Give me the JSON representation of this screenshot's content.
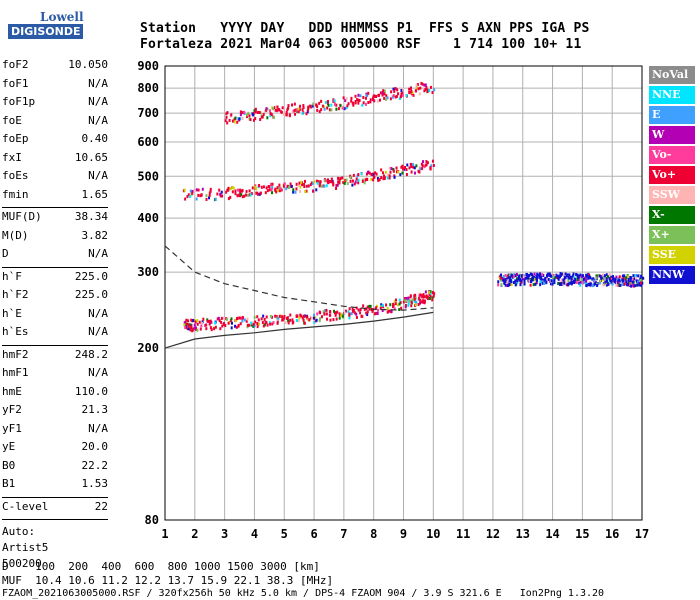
{
  "logo": {
    "line1": "Lowell",
    "line2": "DIGISONDE"
  },
  "header": {
    "row1": "Station   YYYY DAY   DDD HHMMSS P1  FFS S AXN PPS IGA PS",
    "row2": "Fortaleza 2021 Mar04 063 005000 RSF    1 714 100 10+ 11"
  },
  "params_group1": [
    {
      "name": "foF2",
      "value": "10.050"
    },
    {
      "name": "foF1",
      "value": "N/A"
    },
    {
      "name": "foF1p",
      "value": "N/A"
    },
    {
      "name": "foE",
      "value": "N/A"
    },
    {
      "name": "foEp",
      "value": "0.40"
    },
    {
      "name": "fxI",
      "value": "10.65"
    },
    {
      "name": "foEs",
      "value": "N/A"
    },
    {
      "name": "fmin",
      "value": "1.65"
    }
  ],
  "params_group2": [
    {
      "name": "MUF(D)",
      "value": "38.34"
    },
    {
      "name": "M(D)",
      "value": "3.82"
    },
    {
      "name": "D",
      "value": "N/A"
    }
  ],
  "params_group3": [
    {
      "name": "h`F",
      "value": "225.0"
    },
    {
      "name": "h`F2",
      "value": "225.0"
    },
    {
      "name": "h`E",
      "value": "N/A"
    },
    {
      "name": "h`Es",
      "value": "N/A"
    }
  ],
  "params_group4": [
    {
      "name": "hmF2",
      "value": "248.2"
    },
    {
      "name": "hmF1",
      "value": "N/A"
    },
    {
      "name": "hmE",
      "value": "110.0"
    },
    {
      "name": "yF2",
      "value": "21.3"
    },
    {
      "name": "yF1",
      "value": "N/A"
    },
    {
      "name": "yE",
      "value": "20.0"
    },
    {
      "name": "B0",
      "value": "22.2"
    },
    {
      "name": "B1",
      "value": "1.53"
    }
  ],
  "params_group5": [
    {
      "name": "C-level",
      "value": "22"
    }
  ],
  "auto": {
    "line1": "Auto:",
    "line2": "Artist5",
    "line3": "500200"
  },
  "legend": [
    {
      "label": "NoVal",
      "color": "#8c8c8c"
    },
    {
      "label": "NNE",
      "color": "#00e5ff"
    },
    {
      "label": "E",
      "color": "#3fa0ff"
    },
    {
      "label": "W",
      "color": "#b400b4"
    },
    {
      "label": "Vo-",
      "color": "#ff3c9c"
    },
    {
      "label": "Vo+",
      "color": "#ee0033"
    },
    {
      "label": "SSW",
      "color": "#ffb4b4"
    },
    {
      "label": "X-",
      "color": "#007800"
    },
    {
      "label": "X+",
      "color": "#7cc05a"
    },
    {
      "label": "SSE",
      "color": "#d2d200"
    },
    {
      "label": "NNW",
      "color": "#1010d0"
    }
  ],
  "footer": {
    "line1": "D    100  200  400  600  800 1000 1500 3000 [km]",
    "line2": "MUF  10.4 10.6 11.2 12.2 13.7 15.9 22.1 38.3 [MHz]",
    "line3": "FZAOM_2021063005000.RSF / 320fx256h 50 kHz 5.0 km / DPS-4 FZAOM 904 / 3.9 S 321.6 E   Ion2Png 1.3.20"
  },
  "chart_data": {
    "type": "scatter",
    "xlim": [
      1,
      17
    ],
    "ylim": [
      80,
      900
    ],
    "y_scale": "log",
    "xticks": [
      1,
      2,
      3,
      4,
      5,
      6,
      7,
      8,
      9,
      10,
      11,
      12,
      13,
      14,
      15,
      16,
      17
    ],
    "yticks": [
      80,
      200,
      300,
      400,
      500,
      600,
      700,
      800,
      900
    ],
    "grid": true,
    "legend_position": "right",
    "traces": [
      {
        "name": "F2 trace o-mode",
        "color": "#ee0033",
        "x": [
          1.6,
          2,
          3,
          4,
          5,
          6,
          7,
          8,
          9,
          9.5,
          10
        ],
        "y": [
          228,
          228,
          230,
          232,
          235,
          238,
          242,
          248,
          256,
          262,
          270
        ]
      },
      {
        "name": "F2 2-hop",
        "color": "#ee0033",
        "x": [
          1.6,
          3,
          4,
          5,
          6,
          7,
          8,
          9,
          10
        ],
        "y": [
          455,
          460,
          466,
          472,
          480,
          490,
          505,
          520,
          540
        ]
      },
      {
        "name": "F2 3-hop",
        "color": "#ee0033",
        "x": [
          3,
          4,
          5,
          6,
          7,
          8,
          9,
          10
        ],
        "y": [
          688,
          700,
          715,
          728,
          745,
          765,
          790,
          815
        ]
      },
      {
        "name": "spread F",
        "color": "#1010d0",
        "x": [
          12.2,
          13,
          14,
          15,
          16,
          17
        ],
        "y": [
          290,
          290,
          292,
          290,
          290,
          288
        ]
      }
    ],
    "profile_dashed": {
      "x": [
        1,
        2,
        3,
        4,
        5,
        6,
        7,
        8,
        9,
        10
      ],
      "y": [
        345,
        300,
        282,
        272,
        262,
        256,
        250,
        246,
        245,
        248
      ]
    },
    "profile_solid": {
      "x": [
        1,
        2,
        3,
        4,
        5,
        6,
        7,
        8,
        9,
        10
      ],
      "y": [
        200,
        210,
        214,
        217,
        221,
        224,
        227,
        231,
        236,
        242
      ]
    }
  }
}
